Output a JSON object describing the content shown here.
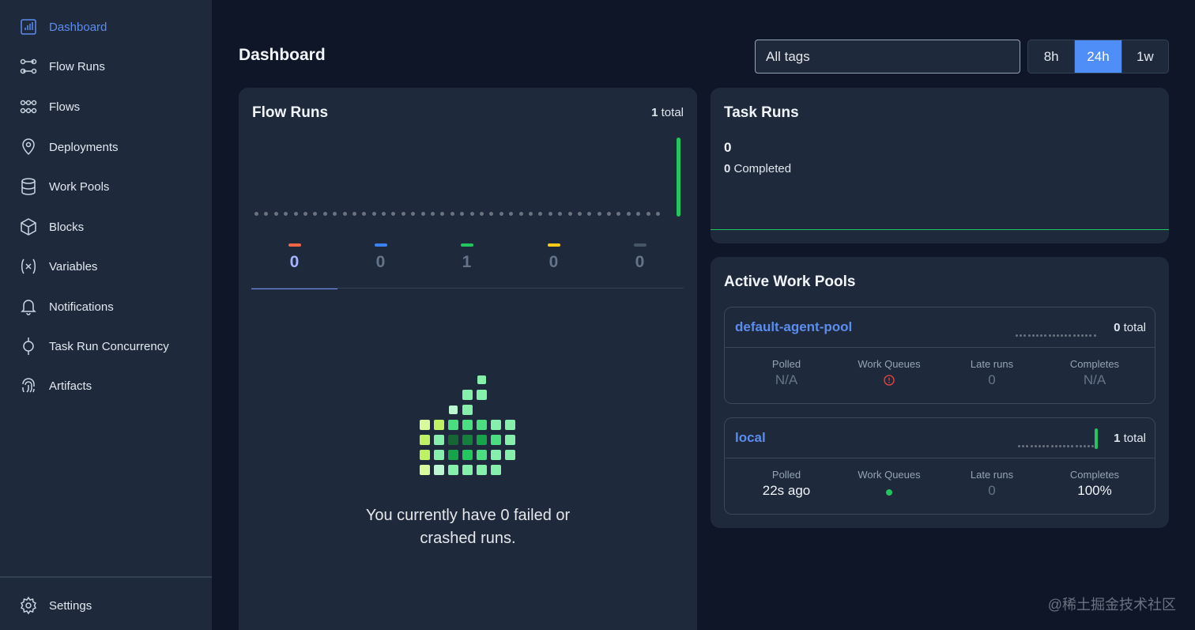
{
  "sidebar": {
    "items": [
      {
        "label": "Dashboard",
        "icon": "bar-chart-icon",
        "active": true
      },
      {
        "label": "Flow Runs",
        "icon": "flow-runs-icon"
      },
      {
        "label": "Flows",
        "icon": "flows-icon"
      },
      {
        "label": "Deployments",
        "icon": "map-pin-icon"
      },
      {
        "label": "Work Pools",
        "icon": "database-icon"
      },
      {
        "label": "Blocks",
        "icon": "cube-icon"
      },
      {
        "label": "Variables",
        "icon": "variable-icon"
      },
      {
        "label": "Notifications",
        "icon": "bell-icon"
      },
      {
        "label": "Task Run Concurrency",
        "icon": "concurrency-icon"
      },
      {
        "label": "Artifacts",
        "icon": "fingerprint-icon"
      }
    ],
    "settings_label": "Settings"
  },
  "header": {
    "title": "Dashboard",
    "tags_value": "All tags",
    "ranges": [
      "8h",
      "24h",
      "1w"
    ],
    "selected_range": "24h"
  },
  "flow_runs": {
    "title": "Flow Runs",
    "total_count": "1",
    "total_suffix": " total",
    "states": [
      {
        "count": "0",
        "color": "#f06543",
        "active": true
      },
      {
        "count": "0",
        "color": "#3b82f6"
      },
      {
        "count": "1",
        "color": "#22c55e"
      },
      {
        "count": "0",
        "color": "#facc15"
      },
      {
        "count": "0",
        "color": "#475569"
      }
    ],
    "empty_message": "You currently have 0 failed or crashed runs."
  },
  "task_runs": {
    "title": "Task Runs",
    "count": "0",
    "completed_count": "0",
    "completed_label": " Completed"
  },
  "work_pools": {
    "title": "Active Work Pools",
    "stat_labels": {
      "polled": "Polled",
      "queues": "Work Queues",
      "late": "Late runs",
      "completes": "Completes"
    },
    "pools": [
      {
        "name": "default-agent-pool",
        "total_count": "0",
        "total_suffix": " total",
        "polled": "N/A",
        "queue_status": "warning",
        "late_runs": "0",
        "completes": "N/A"
      },
      {
        "name": "local",
        "total_count": "1",
        "total_suffix": " total",
        "polled": "22s ago",
        "queue_status": "healthy",
        "late_runs": "0",
        "completes": "100%"
      }
    ]
  },
  "watermark": "@稀土掘金技术社区"
}
